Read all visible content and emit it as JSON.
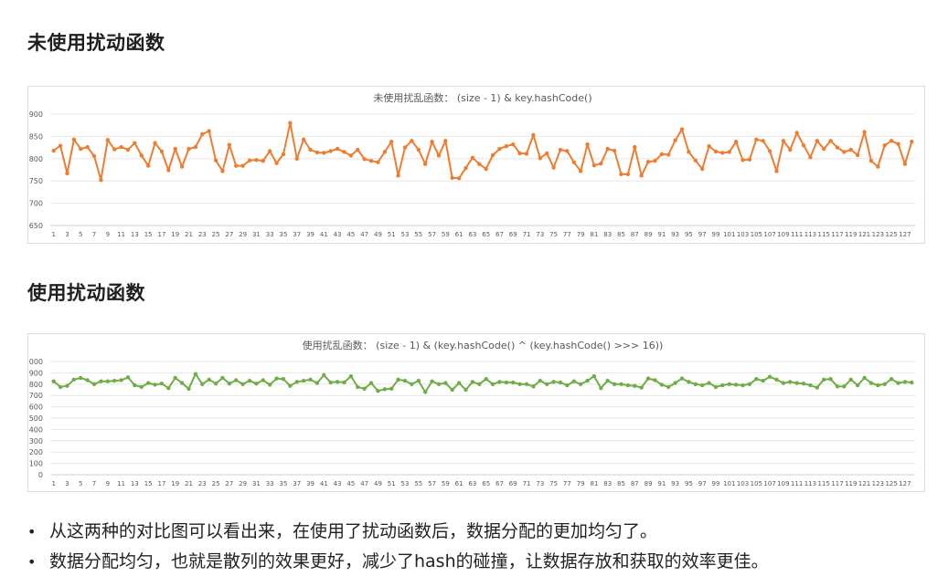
{
  "headings": {
    "without": "未使用扰动函数",
    "with": "使用扰动函数"
  },
  "bullets": [
    "从这两种的对比图可以看出来，在使用了扰动函数后，数据分配的更加均匀了。",
    "数据分配均匀，也就是散列的效果更好，减少了hash的碰撞，让数据存放和获取的效率更佳。"
  ],
  "chart_data": [
    {
      "type": "line",
      "title": "未使用扰乱函数：  (size - 1) & key.hashCode()",
      "color": "#ED7D31",
      "ylim": [
        650,
        900
      ],
      "yticks": [
        650,
        700,
        750,
        800,
        850,
        900
      ],
      "grid": true,
      "x": [
        1,
        2,
        3,
        4,
        5,
        6,
        7,
        8,
        9,
        10,
        11,
        12,
        13,
        14,
        15,
        16,
        17,
        18,
        19,
        20,
        21,
        22,
        23,
        24,
        25,
        26,
        27,
        28,
        29,
        30,
        31,
        32,
        33,
        34,
        35,
        36,
        37,
        38,
        39,
        40,
        41,
        42,
        43,
        44,
        45,
        46,
        47,
        48,
        49,
        50,
        51,
        52,
        53,
        54,
        55,
        56,
        57,
        58,
        59,
        60,
        61,
        62,
        63,
        64,
        65,
        66,
        67,
        68,
        69,
        70,
        71,
        72,
        73,
        74,
        75,
        76,
        77,
        78,
        79,
        80,
        81,
        82,
        83,
        84,
        85,
        86,
        87,
        88,
        89,
        90,
        91,
        92,
        93,
        94,
        95,
        96,
        97,
        98,
        99,
        100,
        101,
        102,
        103,
        104,
        105,
        106,
        107,
        108,
        109,
        110,
        111,
        112,
        113,
        114,
        115,
        116,
        117,
        118,
        119,
        120,
        121,
        122,
        123,
        124,
        125,
        126,
        127,
        128
      ],
      "xticks": [
        "1",
        "3",
        "5",
        "7",
        "9",
        "11",
        "13",
        "15",
        "17",
        "19",
        "21",
        "23",
        "25",
        "27",
        "29",
        "31",
        "33",
        "35",
        "37",
        "39",
        "41",
        "43",
        "45",
        "47",
        "49",
        "51",
        "53",
        "55",
        "57",
        "59",
        "61",
        "63",
        "65",
        "67",
        "69",
        "71",
        "73",
        "75",
        "77",
        "79",
        "81",
        "83",
        "85",
        "87",
        "89",
        "91",
        "93",
        "95",
        "97",
        "99",
        "101",
        "103",
        "105",
        "107",
        "109",
        "111",
        "113",
        "115",
        "117",
        "119",
        "121",
        "123",
        "125",
        "127"
      ],
      "values": [
        818,
        829,
        767,
        843,
        822,
        826,
        806,
        752,
        842,
        821,
        826,
        820,
        835,
        807,
        784,
        835,
        816,
        774,
        822,
        782,
        822,
        826,
        855,
        862,
        796,
        772,
        831,
        784,
        784,
        796,
        797,
        795,
        817,
        790,
        810,
        880,
        800,
        843,
        820,
        814,
        813,
        817,
        822,
        815,
        807,
        820,
        799,
        795,
        792,
        815,
        838,
        762,
        825,
        840,
        820,
        788,
        838,
        807,
        840,
        757,
        756,
        779,
        802,
        788,
        777,
        808,
        822,
        828,
        832,
        812,
        811,
        853,
        801,
        812,
        780,
        820,
        817,
        792,
        772,
        832,
        785,
        789,
        822,
        818,
        765,
        765,
        826,
        762,
        793,
        795,
        810,
        809,
        841,
        866,
        815,
        796,
        777,
        828,
        816,
        813,
        815,
        838,
        797,
        798,
        843,
        840,
        817,
        772,
        840,
        820,
        858,
        830,
        803,
        840,
        822,
        840,
        825,
        815,
        820,
        808,
        860,
        795,
        782,
        830,
        840,
        833,
        788,
        838
      ]
    },
    {
      "type": "line",
      "title": "使用扰乱函数：  (size - 1) & (key.hashCode() ^ (key.hashCode() >>> 16))",
      "color": "#70AD47",
      "ylim": [
        0,
        1000
      ],
      "yticks": [
        0,
        100,
        200,
        300,
        400,
        500,
        600,
        700,
        800,
        900,
        1000
      ],
      "grid": true,
      "x": [
        1,
        2,
        3,
        4,
        5,
        6,
        7,
        8,
        9,
        10,
        11,
        12,
        13,
        14,
        15,
        16,
        17,
        18,
        19,
        20,
        21,
        22,
        23,
        24,
        25,
        26,
        27,
        28,
        29,
        30,
        31,
        32,
        33,
        34,
        35,
        36,
        37,
        38,
        39,
        40,
        41,
        42,
        43,
        44,
        45,
        46,
        47,
        48,
        49,
        50,
        51,
        52,
        53,
        54,
        55,
        56,
        57,
        58,
        59,
        60,
        61,
        62,
        63,
        64,
        65,
        66,
        67,
        68,
        69,
        70,
        71,
        72,
        73,
        74,
        75,
        76,
        77,
        78,
        79,
        80,
        81,
        82,
        83,
        84,
        85,
        86,
        87,
        88,
        89,
        90,
        91,
        92,
        93,
        94,
        95,
        96,
        97,
        98,
        99,
        100,
        101,
        102,
        103,
        104,
        105,
        106,
        107,
        108,
        109,
        110,
        111,
        112,
        113,
        114,
        115,
        116,
        117,
        118,
        119,
        120,
        121,
        122,
        123,
        124,
        125,
        126,
        127,
        128
      ],
      "xticks": [
        "1",
        "3",
        "5",
        "7",
        "9",
        "11",
        "13",
        "15",
        "17",
        "19",
        "21",
        "23",
        "25",
        "27",
        "29",
        "31",
        "33",
        "35",
        "37",
        "39",
        "41",
        "43",
        "45",
        "47",
        "49",
        "51",
        "53",
        "55",
        "57",
        "59",
        "61",
        "63",
        "65",
        "67",
        "69",
        "71",
        "73",
        "75",
        "77",
        "79",
        "81",
        "83",
        "85",
        "87",
        "89",
        "91",
        "93",
        "95",
        "97",
        "99",
        "101",
        "103",
        "105",
        "107",
        "109",
        "111",
        "113",
        "115",
        "117",
        "119",
        "121",
        "123",
        "125",
        "127"
      ],
      "values": [
        825,
        775,
        785,
        840,
        855,
        835,
        800,
        825,
        825,
        830,
        835,
        860,
        790,
        775,
        810,
        795,
        805,
        765,
        855,
        810,
        760,
        890,
        800,
        840,
        805,
        855,
        805,
        835,
        800,
        830,
        805,
        835,
        795,
        850,
        845,
        785,
        820,
        830,
        840,
        810,
        880,
        815,
        820,
        815,
        870,
        775,
        760,
        810,
        740,
        755,
        760,
        840,
        830,
        800,
        830,
        730,
        825,
        800,
        810,
        750,
        810,
        750,
        820,
        800,
        845,
        800,
        820,
        815,
        815,
        800,
        800,
        780,
        830,
        800,
        820,
        815,
        790,
        825,
        800,
        830,
        870,
        765,
        830,
        800,
        800,
        790,
        785,
        770,
        850,
        835,
        795,
        775,
        810,
        850,
        820,
        800,
        790,
        810,
        775,
        790,
        800,
        795,
        790,
        800,
        845,
        830,
        865,
        840,
        810,
        820,
        810,
        805,
        790,
        770,
        840,
        845,
        780,
        780,
        840,
        790,
        855,
        810,
        790,
        800,
        845,
        810,
        820,
        815
      ]
    }
  ]
}
